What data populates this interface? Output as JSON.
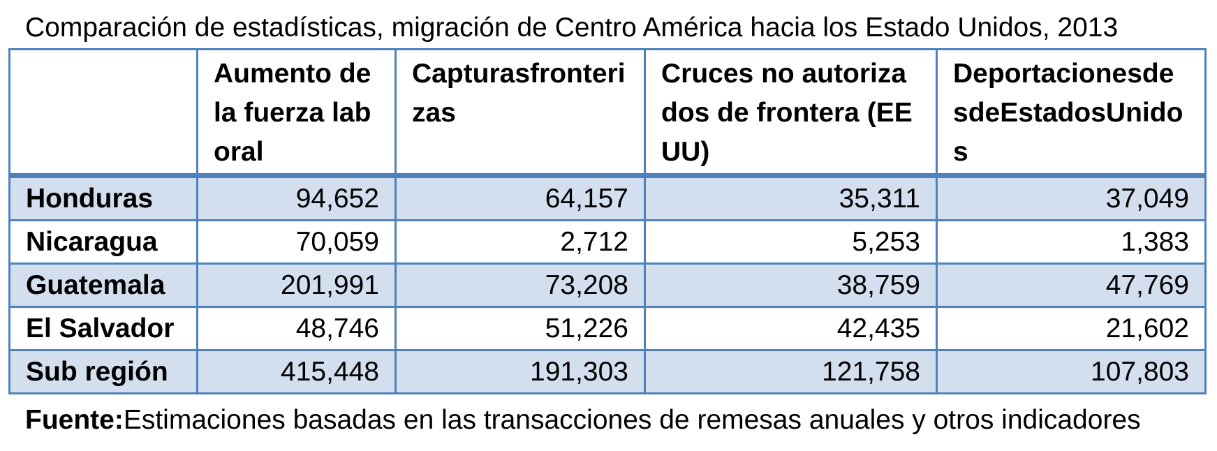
{
  "title": "Comparación de estadísticas, migración de Centro América hacia los Estado Unidos, 2013",
  "table": {
    "corner": "",
    "columns": [
      "Aumento de la fuerza laboral",
      "Capturasfronterizas",
      "Cruces no autorizados de frontera (EEUU)",
      "DeportacionesdesdeEstadosUnidos"
    ],
    "rows": [
      {
        "label": "Honduras",
        "values": [
          "94,652",
          "64,157",
          "35,311",
          "37,049"
        ]
      },
      {
        "label": "Nicaragua",
        "values": [
          "70,059",
          "2,712",
          "5,253",
          "1,383"
        ]
      },
      {
        "label": "Guatemala",
        "values": [
          "201,991",
          "73,208",
          "38,759",
          "47,769"
        ]
      },
      {
        "label": "El Salvador",
        "values": [
          "48,746",
          "51,226",
          "42,435",
          "21,602"
        ]
      },
      {
        "label": "Sub región",
        "values": [
          "415,448",
          "191,303",
          "121,758",
          "107,803"
        ]
      }
    ]
  },
  "source": {
    "label": "Fuente:",
    "text": "Estimaciones basadas en las transacciones de remesas anuales y otros indicadores"
  },
  "colors": {
    "border": "#4f81bd",
    "band": "#d3dfee"
  }
}
